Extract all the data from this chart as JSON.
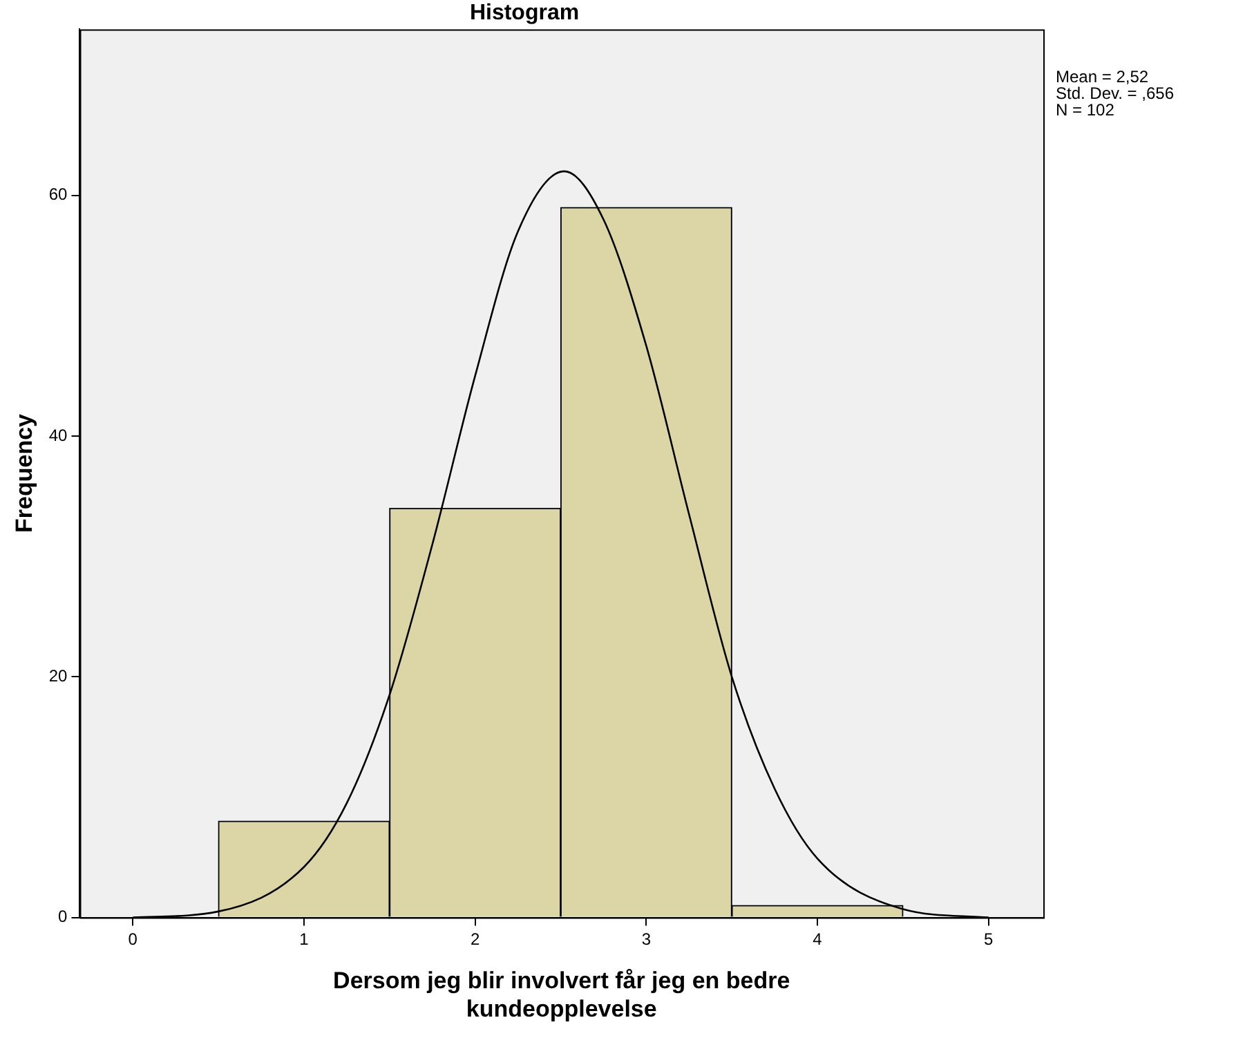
{
  "chart_data": {
    "type": "histogram",
    "title": "Histogram",
    "xlabel": "Dersom jeg blir involvert får jeg en bedre kundeopplevelse",
    "ylabel": "Frequency",
    "bins": [
      0.5,
      1.5,
      2.5,
      3.5,
      4.5
    ],
    "values": [
      8,
      34,
      59,
      1
    ],
    "color": "#dcd5a5",
    "series": [
      {
        "type": "line",
        "color": "#000000",
        "x": [
          0,
          0.5,
          1,
          1.25,
          1.5,
          1.75,
          2,
          2.25,
          2.52,
          2.75,
          3,
          3.25,
          3.5,
          3.75,
          4,
          4.5,
          5
        ],
        "values": [
          0,
          0.5,
          4.2,
          9.5,
          18.5,
          31,
          45,
          57,
          62,
          58,
          47.5,
          33.5,
          20,
          10.7,
          4.9,
          0.7,
          0
        ]
      }
    ],
    "xlim": [
      -0.31,
      5.32
    ],
    "xticks": [
      0,
      1,
      2,
      3,
      4,
      5
    ],
    "ylim": [
      0,
      73.8
    ],
    "yticks": [
      0,
      20,
      40,
      60
    ],
    "annotations": [
      "Mean = 2,52",
      "Std. Dev. = ,656",
      "N = 102"
    ],
    "grid": false,
    "legend": false,
    "marker": "none",
    "line_style": "solid"
  }
}
